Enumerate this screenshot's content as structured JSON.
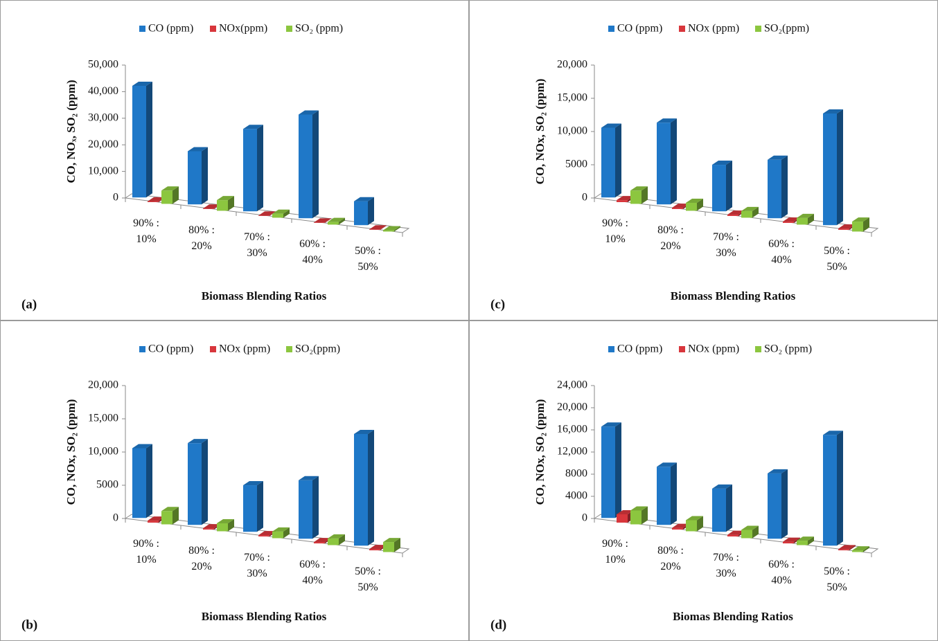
{
  "chart_data": [
    {
      "type": "bar3d",
      "panel_label": "(a)",
      "y_label": "CO, NOₓ, SO₂ (ppm)",
      "x_label": "Biomass Blending Ratios",
      "categories": [
        "90% : 10%",
        "80% : 20%",
        "70% : 30%",
        "60% : 40%",
        "50% : 50%"
      ],
      "series": [
        {
          "name": "CO (ppm)",
          "color": "#1f78c8",
          "values": [
            42000,
            20000,
            31000,
            39000,
            9000
          ]
        },
        {
          "name": "NOx(ppm)",
          "color": "#d8363c",
          "values": [
            300,
            200,
            150,
            150,
            150
          ]
        },
        {
          "name": "SO₂ (ppm)",
          "color": "#8cc63f",
          "values": [
            5000,
            4000,
            1500,
            1000,
            500
          ]
        }
      ],
      "ylim": [
        0,
        50000
      ],
      "yticks": [
        0,
        {
          "value": 10000,
          "label": "10,000"
        },
        {
          "value": 20000,
          "label": "20,000"
        },
        {
          "value": 30000,
          "label": "30,000"
        },
        {
          "value": 40000,
          "label": "40,000"
        },
        {
          "value": 50000,
          "label": "50,000"
        }
      ]
    },
    {
      "type": "bar3d",
      "panel_label": "(b)",
      "y_label": "CO, NOx, SO₂ (ppm)",
      "x_label": "Biomass Blending Ratios",
      "categories": [
        "90% : 10%",
        "80% : 20%",
        "70% : 30%",
        "60% : 40%",
        "50% : 50%"
      ],
      "series": [
        {
          "name": "CO (ppm)",
          "color": "#1f78c8",
          "values": [
            10500,
            12300,
            7000,
            8800,
            16800
          ]
        },
        {
          "name": "NOx (ppm)",
          "color": "#d8363c",
          "values": [
            300,
            200,
            200,
            200,
            200
          ]
        },
        {
          "name": "SO₂(ppm)",
          "color": "#8cc63f",
          "values": [
            2000,
            1200,
            1000,
            1000,
            1500
          ]
        }
      ],
      "ylim": [
        0,
        20000
      ],
      "yticks": [
        0,
        5000,
        {
          "value": 10000,
          "label": "10,000"
        },
        {
          "value": 15000,
          "label": "15,000"
        },
        {
          "value": 20000,
          "label": "20,000"
        }
      ]
    },
    {
      "type": "bar3d",
      "panel_label": "(c)",
      "y_label": "CO, NOx, SO₂ (ppm)",
      "x_label": "Biomass Blending Ratios",
      "categories": [
        "90% : 10%",
        "80% : 20%",
        "70% : 30%",
        "60% : 40%",
        "50% : 50%"
      ],
      "series": [
        {
          "name": "CO (ppm)",
          "color": "#1f78c8",
          "values": [
            10500,
            12300,
            7000,
            8800,
            16800
          ]
        },
        {
          "name": "NOx (ppm)",
          "color": "#d8363c",
          "values": [
            300,
            200,
            200,
            200,
            200
          ]
        },
        {
          "name": "SO₂(ppm)",
          "color": "#8cc63f",
          "values": [
            2000,
            1200,
            1000,
            1000,
            1500
          ]
        }
      ],
      "ylim": [
        0,
        20000
      ],
      "yticks": [
        0,
        5000,
        {
          "value": 10000,
          "label": "10,000"
        },
        {
          "value": 15000,
          "label": "15,000"
        },
        {
          "value": 20000,
          "label": "20,000"
        }
      ]
    },
    {
      "type": "bar3d",
      "panel_label": "(d)",
      "y_label": "CO, NOx, SO₂ (ppm)",
      "x_label": "Biomas Blending Ratios",
      "categories": [
        "90% : 10%",
        "80% : 20%",
        "70% : 30%",
        "60% : 40%",
        "50% : 50%"
      ],
      "series": [
        {
          "name": "CO (ppm)",
          "color": "#1f78c8",
          "values": [
            16500,
            10500,
            7800,
            11800,
            20000
          ]
        },
        {
          "name": "NOx (ppm)",
          "color": "#d8363c",
          "values": [
            1500,
            300,
            300,
            300,
            200
          ]
        },
        {
          "name": "SO₂ (ppm)",
          "color": "#8cc63f",
          "values": [
            2500,
            2000,
            1500,
            800,
            300
          ]
        }
      ],
      "ylim": [
        0,
        24000
      ],
      "yticks": [
        0,
        4000,
        8000,
        {
          "value": 12000,
          "label": "12,000"
        },
        {
          "value": 16000,
          "label": "16,000"
        },
        {
          "value": 20000,
          "label": "20,000"
        },
        {
          "value": 24000,
          "label": "24,000"
        }
      ]
    }
  ]
}
